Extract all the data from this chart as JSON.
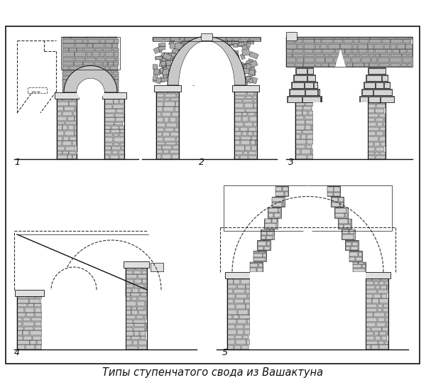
{
  "caption": "Типы ступенчатого свода из Вашактуна",
  "caption_fontsize": 10.5,
  "background_color": "#ffffff",
  "border_color": "#000000",
  "figsize": [
    6.0,
    5.42
  ],
  "dpi": 100,
  "stone_light": "#c8c8c8",
  "stone_mid": "#aaaaaa",
  "stone_dark": "#888888",
  "line_col": "#111111",
  "white": "#ffffff",
  "gray_fill": "#d8d8d8"
}
